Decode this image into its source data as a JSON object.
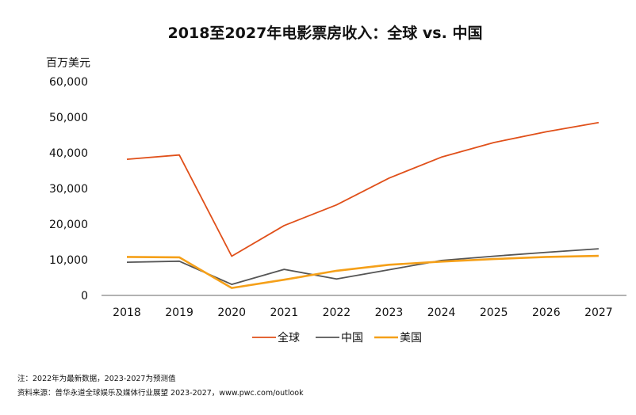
{
  "chart_data": {
    "type": "line",
    "title": "2018至2027年电影票房收入：全球 vs. 中国",
    "unit_label": "百万美元",
    "x": [
      "2018",
      "2019",
      "2020",
      "2021",
      "2022",
      "2023",
      "2024",
      "2025",
      "2026",
      "2027"
    ],
    "ylim": [
      0,
      60000
    ],
    "y_ticks": [
      "0",
      "10,000",
      "20,000",
      "30,000",
      "40,000",
      "50,000",
      "60,000"
    ],
    "y_tick_values": [
      0,
      10000,
      20000,
      30000,
      40000,
      50000,
      60000
    ],
    "grid": false,
    "legend_position": "bottom",
    "series": [
      {
        "name": "全球",
        "color": "#e0501a",
        "values": [
          38200,
          39400,
          11000,
          19600,
          25400,
          32900,
          38800,
          42900,
          45900,
          48500
        ]
      },
      {
        "name": "中国",
        "color": "#555555",
        "values": [
          9300,
          9600,
          3100,
          7300,
          4600,
          7200,
          9800,
          11000,
          12100,
          13100
        ]
      },
      {
        "name": "美国",
        "color": "#f5a019",
        "values": [
          10800,
          10700,
          2100,
          4400,
          6900,
          8600,
          9500,
          10200,
          10800,
          11100
        ]
      }
    ]
  },
  "footnotes": {
    "note": "注：2022年为最新数据，2023-2027为预测值",
    "source": "资料来源：普华永道全球娱乐及媒体行业展望 2023-2027，www.pwc.com/outlook"
  }
}
